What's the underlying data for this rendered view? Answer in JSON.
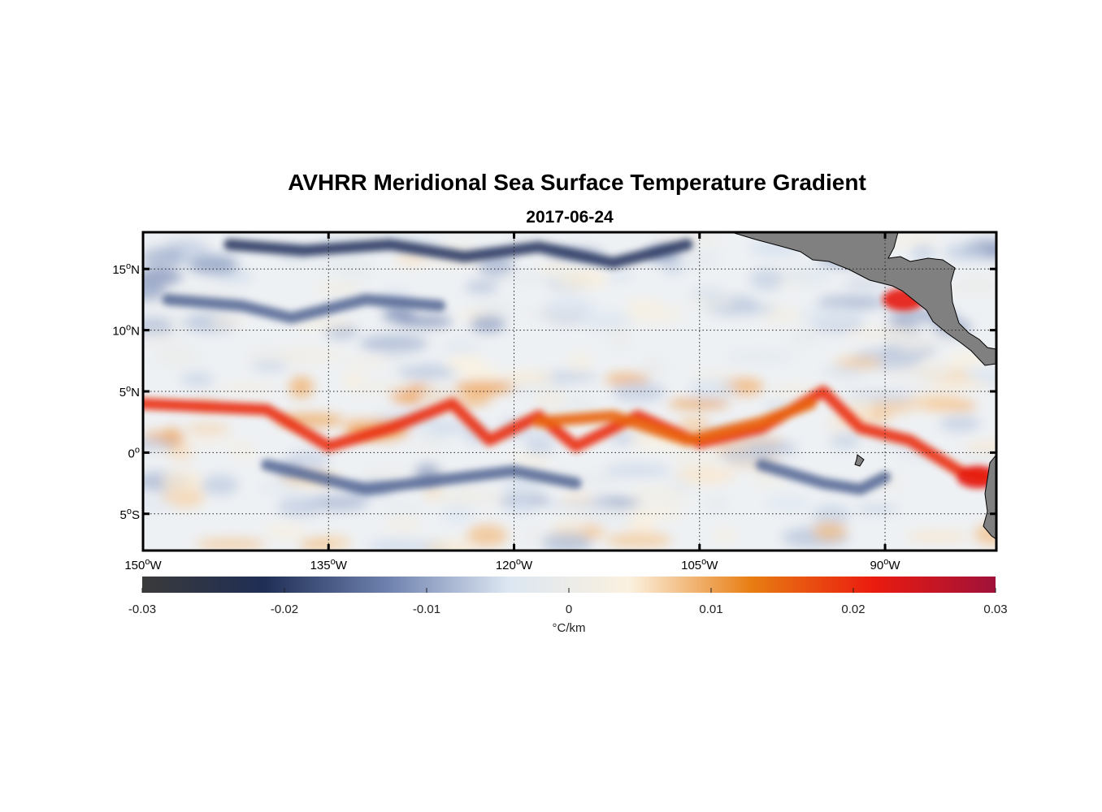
{
  "chart_data": {
    "type": "heatmap",
    "title": "AVHRR Meridional Sea Surface Temperature Gradient",
    "subtitle": "2017-06-24",
    "x_axis": {
      "range": [
        -150,
        -81
      ],
      "ticks": [
        {
          "value": -150,
          "label_num": "150",
          "label_dir": "W"
        },
        {
          "value": -135,
          "label_num": "135",
          "label_dir": "W"
        },
        {
          "value": -120,
          "label_num": "120",
          "label_dir": "W"
        },
        {
          "value": -105,
          "label_num": "105",
          "label_dir": "W"
        },
        {
          "value": -90,
          "label_num": "90",
          "label_dir": "W"
        }
      ]
    },
    "y_axis": {
      "range": [
        -8,
        18
      ],
      "ticks": [
        {
          "value": 15,
          "label_num": "15",
          "label_dir": "N"
        },
        {
          "value": 10,
          "label_num": "10",
          "label_dir": "N"
        },
        {
          "value": 5,
          "label_num": "5",
          "label_dir": "N"
        },
        {
          "value": 0,
          "label_num": "0",
          "label_dir": ""
        },
        {
          "value": -5,
          "label_num": "5",
          "label_dir": "S"
        }
      ]
    },
    "grid": true,
    "colorbar": {
      "range": [
        -0.03,
        0.03
      ],
      "unit": "°C/km",
      "ticks": [
        {
          "value": -0.03,
          "label": "-0.03"
        },
        {
          "value": -0.02,
          "label": "-0.02"
        },
        {
          "value": -0.01,
          "label": "-0.01"
        },
        {
          "value": 0,
          "label": "0"
        },
        {
          "value": 0.01,
          "label": "0.01"
        },
        {
          "value": 0.02,
          "label": "0.02"
        },
        {
          "value": 0.03,
          "label": "0.03"
        }
      ],
      "colors": [
        "#3a3a3a",
        "#1f2e55",
        "#6d80ad",
        "#dce6f2",
        "#fbf1df",
        "#e87d12",
        "#ea1b0f",
        "#a0113a"
      ]
    },
    "land_color": "#808080",
    "features": [
      {
        "type": "positive_band",
        "description_value": 0.02,
        "path": [
          [
            -150,
            4
          ],
          [
            -140,
            3.5
          ],
          [
            -135,
            0.5
          ],
          [
            -130,
            2
          ],
          [
            -125,
            4
          ],
          [
            -122,
            1
          ],
          [
            -118,
            3
          ],
          [
            -115,
            0.5
          ],
          [
            -110,
            3
          ],
          [
            -105,
            0.8
          ],
          [
            -100,
            2
          ],
          [
            -95,
            5
          ],
          [
            -92,
            2
          ],
          [
            -88,
            1
          ],
          [
            -84,
            -1.5
          ],
          [
            -82,
            -2
          ]
        ]
      },
      {
        "type": "positive_band",
        "description_value": 0.015,
        "path": [
          [
            -118,
            2.5
          ],
          [
            -112,
            3
          ],
          [
            -106,
            1
          ],
          [
            -100,
            2.5
          ],
          [
            -96,
            4
          ]
        ]
      },
      {
        "type": "negative_band",
        "description_value": -0.015,
        "path": [
          [
            -148,
            12.5
          ],
          [
            -142,
            12
          ],
          [
            -138,
            11
          ],
          [
            -132,
            12.5
          ],
          [
            -126,
            12
          ]
        ]
      },
      {
        "type": "negative_band",
        "description_value": -0.02,
        "path": [
          [
            -143,
            17
          ],
          [
            -137,
            16.5
          ],
          [
            -130,
            17
          ],
          [
            -124,
            16
          ],
          [
            -118,
            16.8
          ],
          [
            -112,
            15.5
          ],
          [
            -106,
            17
          ]
        ]
      },
      {
        "type": "negative_band",
        "description_value": -0.015,
        "path": [
          [
            -140,
            -1
          ],
          [
            -136,
            -2
          ],
          [
            -132,
            -3
          ],
          [
            -128,
            -2.5
          ],
          [
            -120,
            -1.5
          ],
          [
            -115,
            -2.5
          ]
        ]
      },
      {
        "type": "negative_band",
        "description_value": -0.015,
        "path": [
          [
            -100,
            -1
          ],
          [
            -95,
            -2.5
          ],
          [
            -92,
            -3
          ],
          [
            -90,
            -2
          ]
        ]
      },
      {
        "type": "positive_spot",
        "description_value": 0.022,
        "lon": -88.5,
        "lat": 12.5
      },
      {
        "type": "positive_spot",
        "description_value": 0.022,
        "lon": -82.5,
        "lat": -2
      }
    ]
  }
}
